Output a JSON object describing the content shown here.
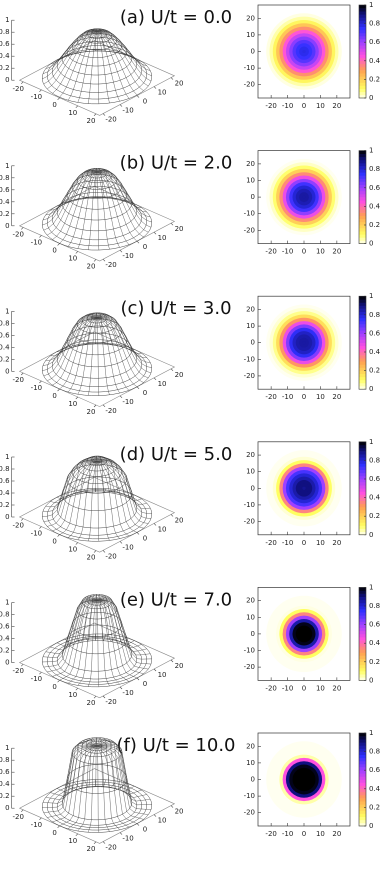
{
  "chart_data": [
    {
      "type": "density-panel",
      "title": "(a) U/t = 0.0",
      "r": [
        0,
        2,
        4,
        6,
        8,
        10,
        12,
        14,
        16,
        18,
        20,
        22
      ],
      "values": [
        0.78,
        0.77,
        0.74,
        0.7,
        0.63,
        0.54,
        0.44,
        0.33,
        0.22,
        0.12,
        0.05,
        0.01
      ],
      "xlim": [
        -22,
        22
      ],
      "ylim": [
        -22,
        22
      ],
      "zlim": [
        0,
        1
      ],
      "xticks": [
        -20,
        -10,
        0,
        10,
        20
      ],
      "yticks": [
        -20,
        -10,
        0,
        10,
        20
      ],
      "zticks": [
        0,
        0.2,
        0.4,
        0.6,
        0.8,
        1
      ],
      "map_xlim": [
        -28,
        28
      ],
      "map_ylim": [
        -28,
        28
      ],
      "map_xticks": [
        -20,
        -10,
        0,
        10,
        20
      ],
      "map_yticks": [
        -20,
        -10,
        0,
        10,
        20
      ],
      "colorbar_ticks": [
        0,
        0.2,
        0.4,
        0.6,
        0.8,
        1
      ]
    },
    {
      "type": "density-panel",
      "title": "(b) U/t = 2.0",
      "r": [
        0,
        2,
        4,
        6,
        8,
        10,
        12,
        14,
        16,
        18,
        20,
        22
      ],
      "values": [
        0.86,
        0.86,
        0.84,
        0.8,
        0.73,
        0.62,
        0.48,
        0.34,
        0.2,
        0.09,
        0.03,
        0
      ],
      "xlim": [
        -22,
        22
      ],
      "ylim": [
        -22,
        22
      ],
      "zlim": [
        0,
        1
      ],
      "xticks": [
        -20,
        -10,
        0,
        10,
        20
      ],
      "yticks": [
        -20,
        -10,
        0,
        10,
        20
      ],
      "zticks": [
        0,
        0.2,
        0.4,
        0.6,
        0.8,
        1
      ],
      "map_xlim": [
        -28,
        28
      ],
      "map_ylim": [
        -28,
        28
      ],
      "map_xticks": [
        -20,
        -10,
        0,
        10,
        20
      ],
      "map_yticks": [
        -20,
        -10,
        0,
        10,
        20
      ],
      "colorbar_ticks": [
        0,
        0.2,
        0.4,
        0.6,
        0.8,
        1
      ]
    },
    {
      "type": "density-panel",
      "title": "(c) U/t = 3.0",
      "r": [
        0,
        2,
        4,
        6,
        8,
        10,
        12,
        14,
        16,
        18,
        20,
        22
      ],
      "values": [
        0.86,
        0.86,
        0.85,
        0.82,
        0.76,
        0.64,
        0.48,
        0.32,
        0.17,
        0.07,
        0.02,
        0
      ],
      "xlim": [
        -22,
        22
      ],
      "ylim": [
        -22,
        22
      ],
      "zlim": [
        0,
        1
      ],
      "xticks": [
        -20,
        -10,
        0,
        10,
        20
      ],
      "yticks": [
        -20,
        -10,
        0,
        10,
        20
      ],
      "zticks": [
        0,
        0.2,
        0.4,
        0.6,
        0.8,
        1
      ],
      "map_xlim": [
        -28,
        28
      ],
      "map_ylim": [
        -28,
        28
      ],
      "map_xticks": [
        -20,
        -10,
        0,
        10,
        20
      ],
      "map_yticks": [
        -20,
        -10,
        0,
        10,
        20
      ],
      "colorbar_ticks": [
        0,
        0.2,
        0.4,
        0.6,
        0.8,
        1
      ]
    },
    {
      "type": "density-panel",
      "title": "(d) U/t = 5.0",
      "r": [
        0,
        2,
        4,
        6,
        8,
        10,
        12,
        14,
        16,
        18,
        20,
        22
      ],
      "values": [
        0.88,
        0.9,
        0.9,
        0.85,
        0.8,
        0.72,
        0.6,
        0.35,
        0.1,
        0.02,
        0,
        0
      ],
      "xlim": [
        -22,
        22
      ],
      "ylim": [
        -22,
        22
      ],
      "zlim": [
        0,
        1
      ],
      "xticks": [
        -20,
        -10,
        0,
        10,
        20
      ],
      "yticks": [
        -20,
        -10,
        0,
        10,
        20
      ],
      "zticks": [
        0,
        0.2,
        0.4,
        0.6,
        0.8,
        1
      ],
      "map_xlim": [
        -28,
        28
      ],
      "map_ylim": [
        -28,
        28
      ],
      "map_xticks": [
        -20,
        -10,
        0,
        10,
        20
      ],
      "map_yticks": [
        -20,
        -10,
        0,
        10,
        20
      ],
      "colorbar_ticks": [
        0,
        0.2,
        0.4,
        0.6,
        0.8,
        1
      ]
    },
    {
      "type": "density-panel",
      "title": "(e) U/t = 7.0",
      "r": [
        0,
        2,
        4,
        6,
        8,
        10,
        12,
        14,
        16,
        18,
        20,
        22
      ],
      "values": [
        1,
        1,
        1,
        0.98,
        0.85,
        0.6,
        0.35,
        0.1,
        0.01,
        0,
        0,
        0
      ],
      "xlim": [
        -22,
        22
      ],
      "ylim": [
        -22,
        22
      ],
      "zlim": [
        0,
        1
      ],
      "xticks": [
        -20,
        -10,
        0,
        10,
        20
      ],
      "yticks": [
        -20,
        -10,
        0,
        10,
        20
      ],
      "zticks": [
        0,
        0.2,
        0.4,
        0.6,
        0.8,
        1
      ],
      "map_xlim": [
        -28,
        28
      ],
      "map_ylim": [
        -28,
        28
      ],
      "map_xticks": [
        -20,
        -10,
        0,
        10,
        20
      ],
      "map_yticks": [
        -20,
        -10,
        0,
        10,
        20
      ],
      "colorbar_ticks": [
        0,
        0.2,
        0.4,
        0.6,
        0.8,
        1
      ]
    },
    {
      "type": "density-panel",
      "title": "(f) U/t = 10.0",
      "r": [
        0,
        2,
        4,
        6,
        8,
        10,
        12,
        14,
        16,
        18,
        20,
        22
      ],
      "values": [
        1,
        1,
        1,
        1,
        0.98,
        0.9,
        0.45,
        0.05,
        0,
        0,
        0,
        0
      ],
      "xlim": [
        -22,
        22
      ],
      "ylim": [
        -22,
        22
      ],
      "zlim": [
        0,
        1
      ],
      "xticks": [
        -20,
        -10,
        0,
        10,
        20
      ],
      "yticks": [
        -20,
        -10,
        0,
        10,
        20
      ],
      "zticks": [
        0,
        0.2,
        0.4,
        0.6,
        0.8,
        1
      ],
      "map_xlim": [
        -28,
        28
      ],
      "map_ylim": [
        -28,
        28
      ],
      "map_xticks": [
        -20,
        -10,
        0,
        10,
        20
      ],
      "map_yticks": [
        -20,
        -10,
        0,
        10,
        20
      ],
      "colorbar_ticks": [
        0,
        0.2,
        0.4,
        0.6,
        0.8,
        1
      ]
    }
  ]
}
